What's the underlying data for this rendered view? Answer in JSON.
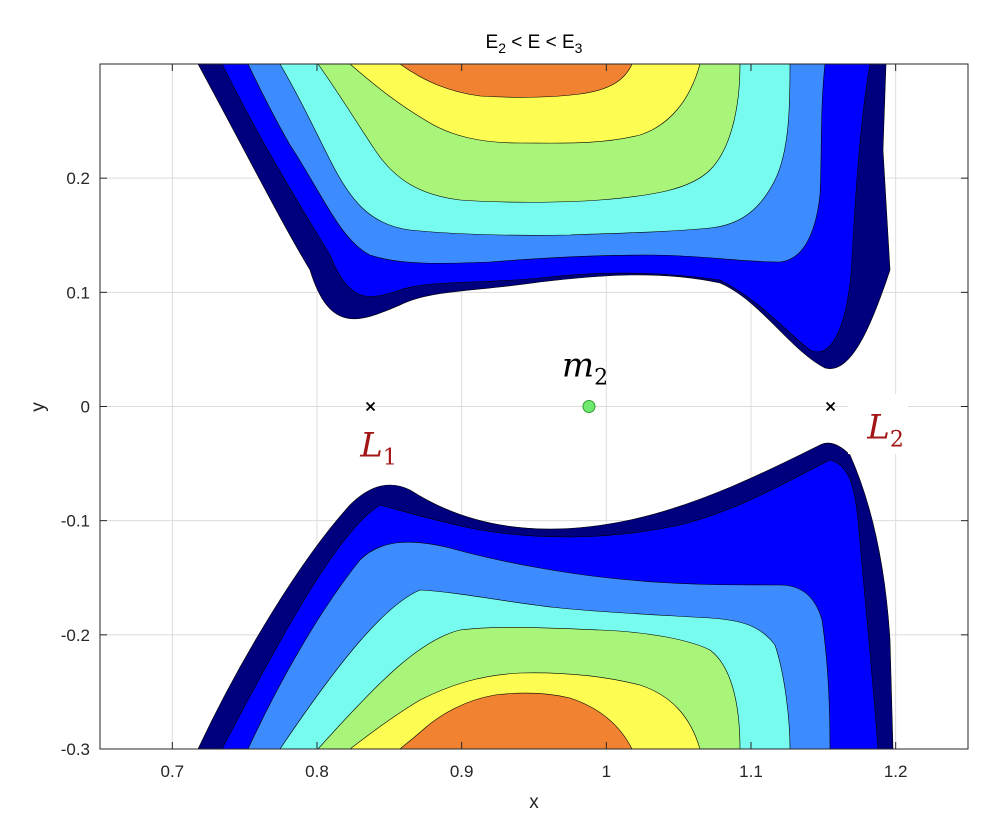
{
  "chart_data": {
    "type": "contour",
    "title": {
      "main": "E",
      "sub1": "2",
      "rel1": " < E < ",
      "main2": "E",
      "sub2": "3"
    },
    "xlabel": "x",
    "ylabel": "y",
    "xlim": [
      0.65,
      1.25
    ],
    "ylim": [
      -0.3,
      0.3
    ],
    "xticks": [
      0.7,
      0.8,
      0.9,
      1.0,
      1.1,
      1.2
    ],
    "xtick_labels": [
      "0.7",
      "0.8",
      "0.9",
      "1",
      "1.1",
      "1.2"
    ],
    "yticks": [
      -0.3,
      -0.2,
      -0.1,
      0,
      0.1,
      0.2
    ],
    "ytick_labels": [
      "-0.3",
      "-0.2",
      "-0.1",
      "0",
      "0.1",
      "0.2"
    ],
    "grid": true,
    "colors": {
      "level1": "#00007f",
      "level2": "#0000ff",
      "level3": "#3c8cff",
      "level4": "#78fbef",
      "level5": "#a8f57a",
      "level6": "#fcfc52",
      "level7": "#f08232",
      "labels": "#a31515"
    },
    "points": [
      {
        "name": "L",
        "sub": "1",
        "x": 0.837,
        "y": 0,
        "marker": "x"
      },
      {
        "name": "m",
        "sub": "2",
        "x": 0.988,
        "y": 0,
        "marker": "circle",
        "color": "#6fe86f"
      },
      {
        "name": "L",
        "sub": "2",
        "x": 1.155,
        "y": 0,
        "marker": "x"
      }
    ]
  }
}
